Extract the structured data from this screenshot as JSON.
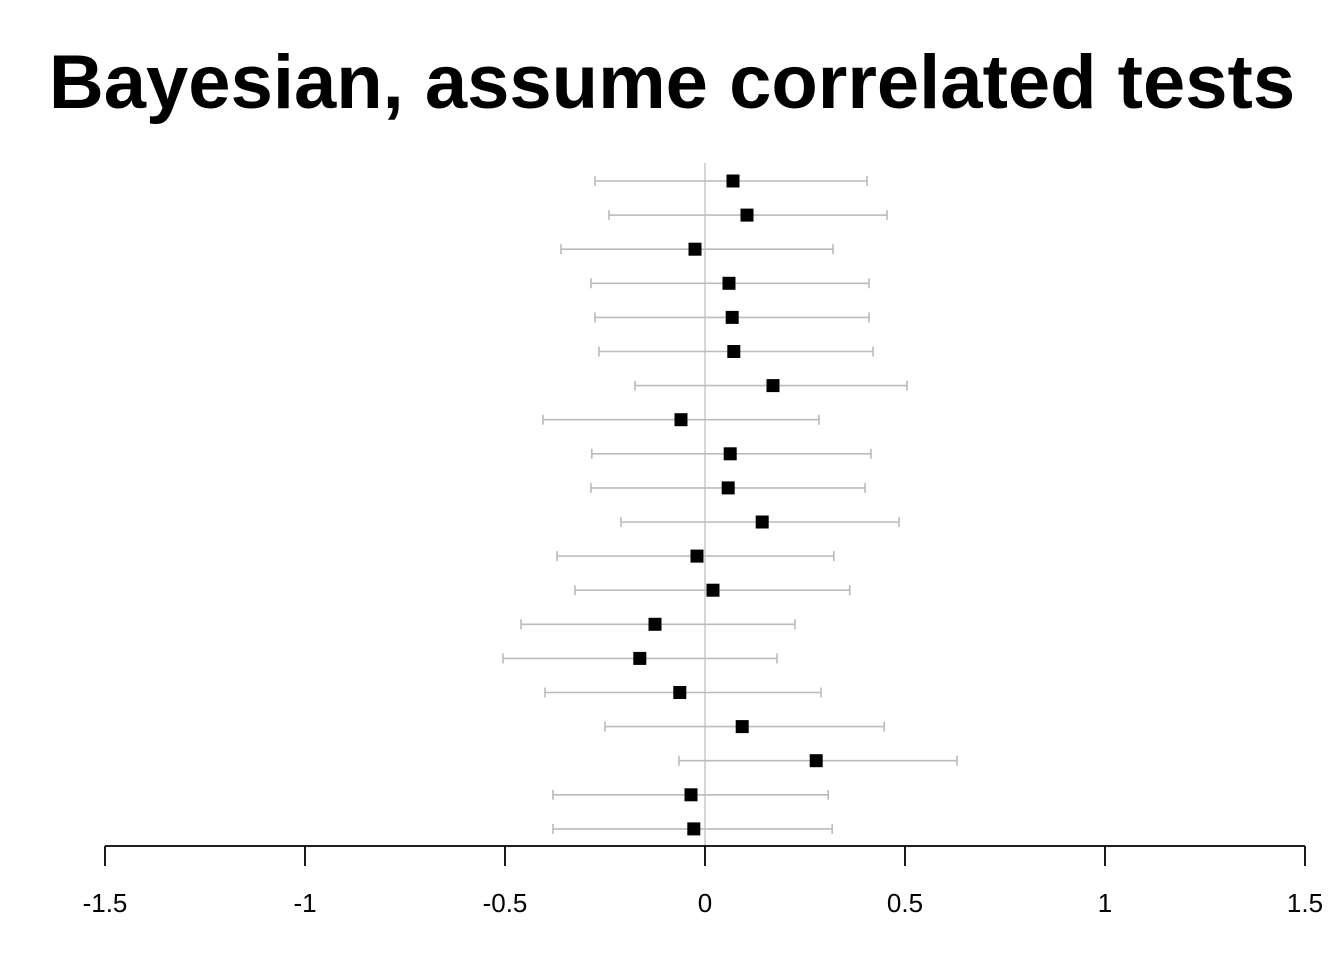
{
  "chart_data": {
    "type": "forest",
    "title": "Bayesian, assume correlated tests",
    "xlabel": "",
    "ylabel": "",
    "xlim": [
      -1.5,
      1.5
    ],
    "x_ticks": [
      -1.5,
      -1,
      -0.5,
      0,
      0.5,
      1,
      1.5
    ],
    "x_tick_labels": [
      "-1.5",
      "-1",
      "-0.5",
      "0",
      "0.5",
      "1",
      "1.5"
    ],
    "reference_line": 0,
    "colors": {
      "point": "#000000",
      "interval": "#bbbbbb",
      "reference_line": "#cccccc",
      "axis": "#000000"
    },
    "rows": [
      {
        "estimate": 0.07,
        "lower": -0.275,
        "upper": 0.405
      },
      {
        "estimate": 0.105,
        "lower": -0.24,
        "upper": 0.455
      },
      {
        "estimate": -0.025,
        "lower": -0.36,
        "upper": 0.32
      },
      {
        "estimate": 0.06,
        "lower": -0.285,
        "upper": 0.41
      },
      {
        "estimate": 0.068,
        "lower": -0.275,
        "upper": 0.41
      },
      {
        "estimate": 0.072,
        "lower": -0.265,
        "upper": 0.42
      },
      {
        "estimate": 0.17,
        "lower": -0.175,
        "upper": 0.505
      },
      {
        "estimate": -0.06,
        "lower": -0.405,
        "upper": 0.285
      },
      {
        "estimate": 0.063,
        "lower": -0.283,
        "upper": 0.415
      },
      {
        "estimate": 0.058,
        "lower": -0.285,
        "upper": 0.4
      },
      {
        "estimate": 0.143,
        "lower": -0.21,
        "upper": 0.485
      },
      {
        "estimate": -0.02,
        "lower": -0.37,
        "upper": 0.322
      },
      {
        "estimate": 0.02,
        "lower": -0.325,
        "upper": 0.362
      },
      {
        "estimate": -0.125,
        "lower": -0.46,
        "upper": 0.225
      },
      {
        "estimate": -0.163,
        "lower": -0.505,
        "upper": 0.18
      },
      {
        "estimate": -0.063,
        "lower": -0.4,
        "upper": 0.29
      },
      {
        "estimate": 0.093,
        "lower": -0.25,
        "upper": 0.448
      },
      {
        "estimate": 0.278,
        "lower": -0.065,
        "upper": 0.63
      },
      {
        "estimate": -0.035,
        "lower": -0.38,
        "upper": 0.308
      },
      {
        "estimate": -0.028,
        "lower": -0.38,
        "upper": 0.318
      }
    ]
  }
}
